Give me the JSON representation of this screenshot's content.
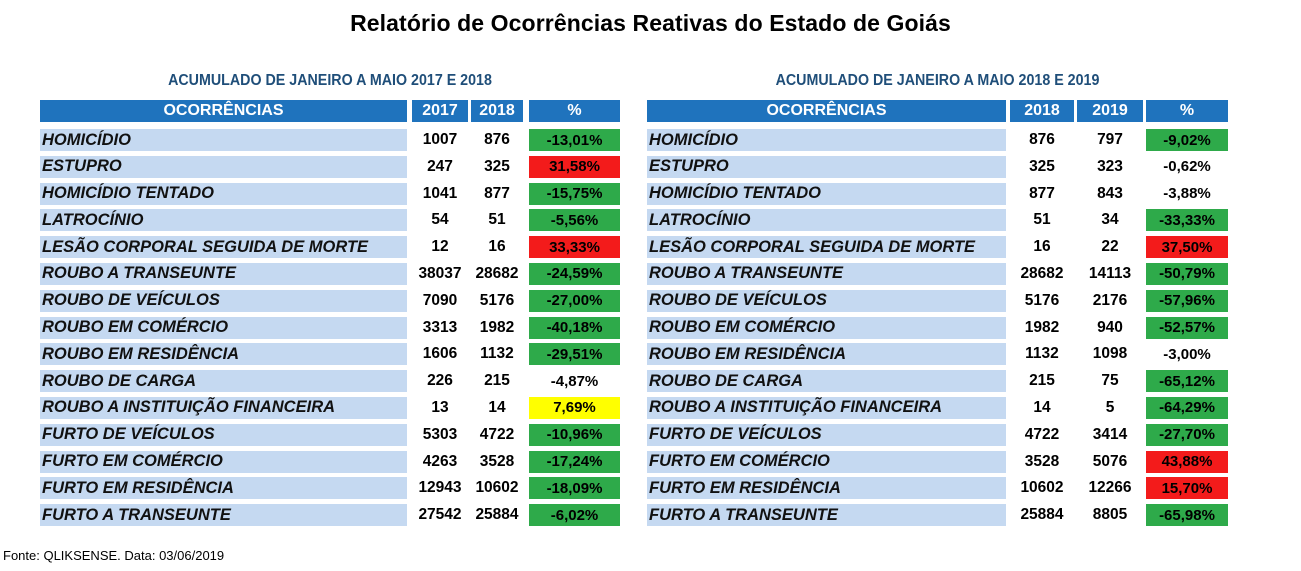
{
  "title": "Relatório de Ocorrências Reativas do Estado de Goiás",
  "source": "Fonte: QLIKSENSE. Data: 03/06/2019",
  "colors": {
    "header": "#1F73BD",
    "name_bg": "#C5D9F1",
    "panel_title": "#1F4E79",
    "green": "#2EAA4A",
    "red": "#F31B1B",
    "yellow": "#FFFF00"
  },
  "left": {
    "title": "ACUMULADO DE JANEIRO A MAIO 2017 E 2018",
    "headers": {
      "name": "OCORRÊNCIAS",
      "a": "2017",
      "b": "2018",
      "pct": "%"
    },
    "rows": [
      {
        "name": "HOMICÍDIO",
        "a": "1007",
        "b": "876",
        "pct": "-13,01%",
        "status": "green"
      },
      {
        "name": "ESTUPRO",
        "a": "247",
        "b": "325",
        "pct": "31,58%",
        "status": "red"
      },
      {
        "name": "HOMICÍDIO TENTADO",
        "a": "1041",
        "b": "877",
        "pct": "-15,75%",
        "status": "green"
      },
      {
        "name": "LATROCÍNIO",
        "a": "54",
        "b": "51",
        "pct": "-5,56%",
        "status": "green"
      },
      {
        "name": "LESÃO CORPORAL SEGUIDA DE MORTE",
        "a": "12",
        "b": "16",
        "pct": "33,33%",
        "status": "red"
      },
      {
        "name": "ROUBO A TRANSEUNTE",
        "a": "38037",
        "b": "28682",
        "pct": "-24,59%",
        "status": "green"
      },
      {
        "name": "ROUBO DE VEÍCULOS",
        "a": "7090",
        "b": "5176",
        "pct": "-27,00%",
        "status": "green"
      },
      {
        "name": "ROUBO EM COMÉRCIO",
        "a": "3313",
        "b": "1982",
        "pct": "-40,18%",
        "status": "green"
      },
      {
        "name": "ROUBO EM RESIDÊNCIA",
        "a": "1606",
        "b": "1132",
        "pct": "-29,51%",
        "status": "green"
      },
      {
        "name": "ROUBO DE CARGA",
        "a": "226",
        "b": "215",
        "pct": "-4,87%",
        "status": "none"
      },
      {
        "name": "ROUBO A INSTITUIÇÃO FINANCEIRA",
        "a": "13",
        "b": "14",
        "pct": "7,69%",
        "status": "yellow"
      },
      {
        "name": "FURTO DE VEÍCULOS",
        "a": "5303",
        "b": "4722",
        "pct": "-10,96%",
        "status": "green"
      },
      {
        "name": "FURTO EM COMÉRCIO",
        "a": "4263",
        "b": "3528",
        "pct": "-17,24%",
        "status": "green"
      },
      {
        "name": "FURTO EM RESIDÊNCIA",
        "a": "12943",
        "b": "10602",
        "pct": "-18,09%",
        "status": "green"
      },
      {
        "name": "FURTO A TRANSEUNTE",
        "a": "27542",
        "b": "25884",
        "pct": "-6,02%",
        "status": "green"
      }
    ]
  },
  "right": {
    "title": "ACUMULADO DE JANEIRO A MAIO 2018 E 2019",
    "headers": {
      "name": "OCORRÊNCIAS",
      "a": "2018",
      "b": "2019",
      "pct": "%"
    },
    "rows": [
      {
        "name": "HOMICÍDIO",
        "a": "876",
        "b": "797",
        "pct": "-9,02%",
        "status": "green"
      },
      {
        "name": "ESTUPRO",
        "a": "325",
        "b": "323",
        "pct": "-0,62%",
        "status": "none"
      },
      {
        "name": "HOMICÍDIO TENTADO",
        "a": "877",
        "b": "843",
        "pct": "-3,88%",
        "status": "none"
      },
      {
        "name": "LATROCÍNIO",
        "a": "51",
        "b": "34",
        "pct": "-33,33%",
        "status": "green"
      },
      {
        "name": "LESÃO CORPORAL SEGUIDA DE MORTE",
        "a": "16",
        "b": "22",
        "pct": "37,50%",
        "status": "red"
      },
      {
        "name": "ROUBO A TRANSEUNTE",
        "a": "28682",
        "b": "14113",
        "pct": "-50,79%",
        "status": "green"
      },
      {
        "name": "ROUBO DE VEÍCULOS",
        "a": "5176",
        "b": "2176",
        "pct": "-57,96%",
        "status": "green"
      },
      {
        "name": "ROUBO EM COMÉRCIO",
        "a": "1982",
        "b": "940",
        "pct": "-52,57%",
        "status": "green"
      },
      {
        "name": "ROUBO EM RESIDÊNCIA",
        "a": "1132",
        "b": "1098",
        "pct": "-3,00%",
        "status": "none"
      },
      {
        "name": "ROUBO DE CARGA",
        "a": "215",
        "b": "75",
        "pct": "-65,12%",
        "status": "green"
      },
      {
        "name": "ROUBO A INSTITUIÇÃO FINANCEIRA",
        "a": "14",
        "b": "5",
        "pct": "-64,29%",
        "status": "green"
      },
      {
        "name": "FURTO DE VEÍCULOS",
        "a": "4722",
        "b": "3414",
        "pct": "-27,70%",
        "status": "green"
      },
      {
        "name": "FURTO EM COMÉRCIO",
        "a": "3528",
        "b": "5076",
        "pct": "43,88%",
        "status": "red"
      },
      {
        "name": "FURTO EM RESIDÊNCIA",
        "a": "10602",
        "b": "12266",
        "pct": "15,70%",
        "status": "red"
      },
      {
        "name": "FURTO A TRANSEUNTE",
        "a": "25884",
        "b": "8805",
        "pct": "-65,98%",
        "status": "green"
      }
    ]
  }
}
